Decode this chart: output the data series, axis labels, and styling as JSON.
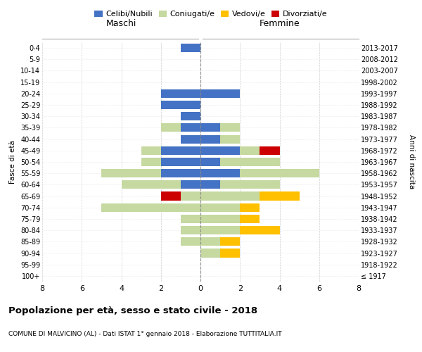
{
  "age_groups": [
    "100+",
    "95-99",
    "90-94",
    "85-89",
    "80-84",
    "75-79",
    "70-74",
    "65-69",
    "60-64",
    "55-59",
    "50-54",
    "45-49",
    "40-44",
    "35-39",
    "30-34",
    "25-29",
    "20-24",
    "15-19",
    "10-14",
    "5-9",
    "0-4"
  ],
  "birth_years": [
    "≤ 1917",
    "1918-1922",
    "1923-1927",
    "1928-1932",
    "1933-1937",
    "1938-1942",
    "1943-1947",
    "1948-1952",
    "1953-1957",
    "1958-1962",
    "1963-1967",
    "1968-1972",
    "1973-1977",
    "1978-1982",
    "1983-1987",
    "1988-1992",
    "1993-1997",
    "1998-2002",
    "2003-2007",
    "2008-2012",
    "2013-2017"
  ],
  "males": {
    "celibi": [
      0,
      0,
      0,
      0,
      0,
      0,
      0,
      0,
      1,
      2,
      2,
      2,
      1,
      1,
      1,
      2,
      2,
      0,
      0,
      0,
      1
    ],
    "coniugati": [
      0,
      0,
      0,
      1,
      1,
      1,
      5,
      1,
      3,
      3,
      1,
      1,
      0,
      1,
      0,
      0,
      0,
      0,
      0,
      0,
      0
    ],
    "vedovi": [
      0,
      0,
      0,
      0,
      0,
      0,
      0,
      0,
      0,
      0,
      0,
      0,
      0,
      0,
      0,
      0,
      0,
      0,
      0,
      0,
      0
    ],
    "divorziati": [
      0,
      0,
      0,
      0,
      0,
      0,
      0,
      1,
      0,
      0,
      0,
      0,
      0,
      0,
      0,
      0,
      0,
      0,
      0,
      0,
      0
    ]
  },
  "females": {
    "nubili": [
      0,
      0,
      0,
      0,
      0,
      0,
      0,
      0,
      1,
      2,
      1,
      2,
      1,
      1,
      0,
      0,
      2,
      0,
      0,
      0,
      0
    ],
    "coniugate": [
      0,
      0,
      1,
      1,
      2,
      2,
      2,
      3,
      3,
      4,
      3,
      1,
      1,
      1,
      0,
      0,
      0,
      0,
      0,
      0,
      0
    ],
    "vedove": [
      0,
      0,
      1,
      1,
      2,
      1,
      1,
      2,
      0,
      0,
      0,
      0,
      0,
      0,
      0,
      0,
      0,
      0,
      0,
      0,
      0
    ],
    "divorziate": [
      0,
      0,
      0,
      0,
      0,
      0,
      0,
      0,
      0,
      0,
      0,
      1,
      0,
      0,
      0,
      0,
      0,
      0,
      0,
      0,
      0
    ]
  },
  "colors": {
    "celibi": "#4472c4",
    "coniugati": "#c5d9a0",
    "vedovi": "#ffc000",
    "divorziati": "#cc0000"
  },
  "xlim": 8,
  "title": "Popolazione per età, sesso e stato civile - 2018",
  "subtitle": "COMUNE DI MALVICINO (AL) - Dati ISTAT 1° gennaio 2018 - Elaborazione TUTTITALIA.IT",
  "ylabel": "Fasce di età",
  "ylabel_right": "Anni di nascita",
  "maschi_label": "Maschi",
  "femmine_label": "Femmine",
  "legend_labels": [
    "Celibi/Nubili",
    "Coniugati/e",
    "Vedovi/e",
    "Divorziati/e"
  ]
}
